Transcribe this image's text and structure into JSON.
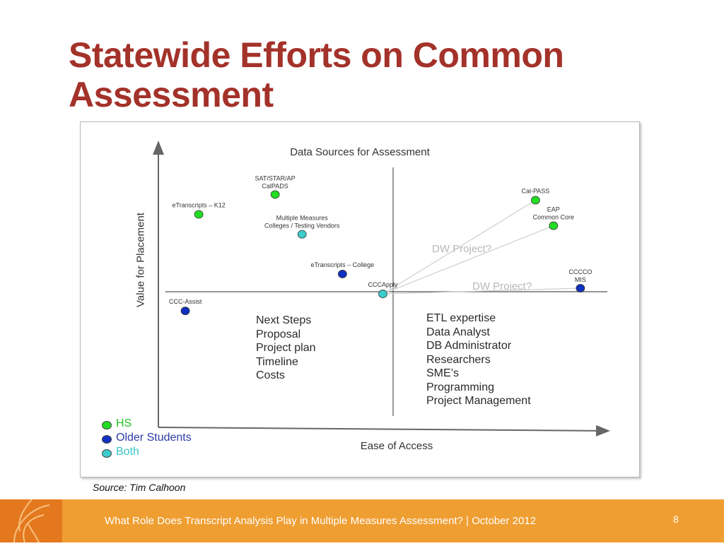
{
  "slide": {
    "title": "Statewide Efforts on Common Assessment",
    "source": "Source:  Tim Calhoon",
    "footer_text": "What Role Does Transcript Analysis Play in Multiple Measures Assessment? | October 2012",
    "page_number": "8"
  },
  "colors": {
    "HS": "#22dd22",
    "Older Students": "#1030c0",
    "Both": "#3ccccc",
    "title": "#a3322a",
    "footer": "#ef9e32"
  },
  "chart_data": {
    "type": "scatter",
    "title": "Data Sources for Assessment",
    "xlabel": "Ease of Access",
    "ylabel": "Value for Placement",
    "legend": [
      {
        "name": "HS",
        "color": "#22dd22"
      },
      {
        "name": "Older Students",
        "color": "#1030c0"
      },
      {
        "name": "Both",
        "color": "#3ccccc"
      }
    ],
    "legend_position": "bottom-left",
    "points": [
      {
        "label": "eTranscripts  – K12",
        "group": "HS",
        "x": 0.09,
        "y": 0.75
      },
      {
        "label": "SAT/STAR/AP\nCalPADS",
        "group": "HS",
        "x": 0.26,
        "y": 0.82
      },
      {
        "label": "Multiple  Measures\nColleges  / Testing  Vendors",
        "group": "Both",
        "x": 0.32,
        "y": 0.68
      },
      {
        "label": "eTranscripts  – College",
        "group": "Older Students",
        "x": 0.41,
        "y": 0.54
      },
      {
        "label": "CCCApply",
        "group": "Both",
        "x": 0.5,
        "y": 0.47
      },
      {
        "label": "CCC-Assist",
        "group": "Older Students",
        "x": 0.06,
        "y": 0.41
      },
      {
        "label": "Cal-PASS",
        "group": "HS",
        "x": 0.84,
        "y": 0.8
      },
      {
        "label": "EAP\nCommon  Core",
        "group": "HS",
        "x": 0.88,
        "y": 0.71
      },
      {
        "label": "CCCCO\nMIS",
        "group": "Older Students",
        "x": 0.94,
        "y": 0.49
      }
    ],
    "connections": [
      {
        "from": "CCCApply",
        "to": "Cal-PASS"
      },
      {
        "from": "CCCApply",
        "to": "EAP\nCommon  Core"
      },
      {
        "from": "CCCApply",
        "to": "CCCCO\nMIS"
      }
    ],
    "annotations": [
      "DW Project?",
      "DW Project?"
    ],
    "next_steps": [
      "Next Steps",
      "Proposal",
      "Project plan",
      "Timeline",
      "Costs"
    ],
    "resources": [
      "ETL expertise",
      "Data Analyst",
      "DB Administrator",
      "Researchers",
      "SME’s",
      "Programming",
      "Project Management"
    ]
  }
}
